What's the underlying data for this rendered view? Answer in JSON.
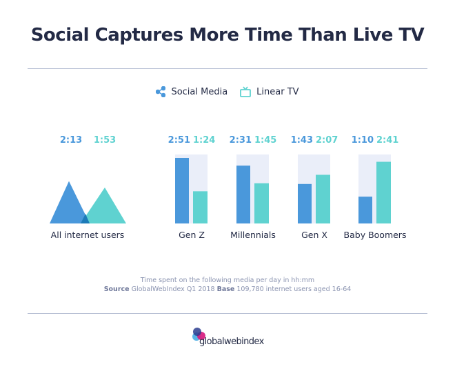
{
  "title": "Social Captures More Time Than Live TV",
  "legend": {
    "social": "Social Media",
    "tv": "Linear TV",
    "social_icon": "share-icon",
    "tv_icon": "tv-icon"
  },
  "colors": {
    "social": "#4a98db",
    "tv": "#5fd2d0",
    "panel": "#eaeef9",
    "overlap": "#1d7bb8"
  },
  "chart_data": {
    "type": "bar",
    "unit": "hh:mm",
    "categories": [
      "All internet users",
      "Gen Z",
      "Millennials",
      "Gen X",
      "Baby Boomers"
    ],
    "series": [
      {
        "name": "Social Media",
        "values": [
          "2:13",
          "2:51",
          "2:31",
          "1:43",
          "1:10"
        ]
      },
      {
        "name": "Linear TV",
        "values": [
          "1:53",
          "1:24",
          "1:45",
          "2:07",
          "2:41"
        ]
      }
    ]
  },
  "notes": {
    "line1": "Time spent on the following media per day in hh:mm",
    "source_label": "Source",
    "source": "GlobalWebIndex Q1 2018",
    "base_label": "Base",
    "base": "109,780 internet users aged 16-64"
  },
  "logo": {
    "text": "globalwebindex"
  }
}
